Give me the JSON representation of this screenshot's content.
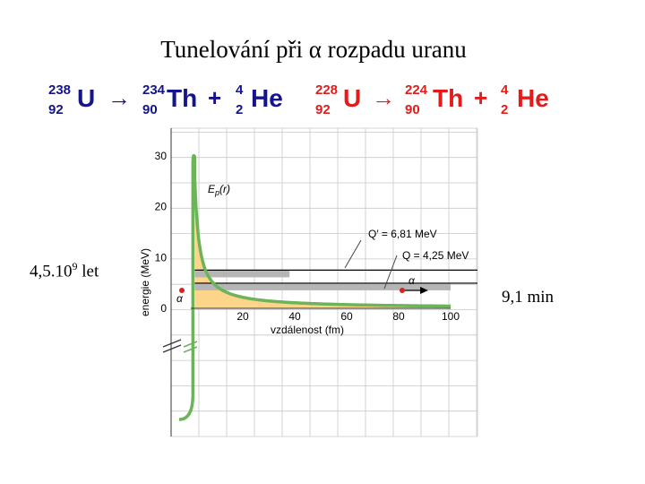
{
  "title": "Tunelování při α rozpadu uranu",
  "equation_1": {
    "color": "#14148c",
    "parent": {
      "mass": "238",
      "charge": "92",
      "symbol": "U"
    },
    "arrow": "→",
    "daughter": {
      "mass": "234",
      "charge": "90",
      "symbol": "Th"
    },
    "plus": "+",
    "alpha": {
      "mass": "4",
      "charge": "2",
      "symbol": "He"
    }
  },
  "equation_2": {
    "color": "#e21b1b",
    "parent": {
      "mass": "228",
      "charge": "92",
      "symbol": "U"
    },
    "arrow": "→",
    "daughter": {
      "mass": "224",
      "charge": "90",
      "symbol": "Th"
    },
    "plus": "+",
    "alpha": {
      "mass": "4",
      "charge": "2",
      "symbol": "He"
    }
  },
  "half_life_u238": {
    "mantissa": "4,5.10",
    "exponent": "9",
    "unit": " let"
  },
  "half_life_u228": "9,1 min",
  "graph": {
    "curve_label": "E",
    "curve_label_sub": "p",
    "curve_label_arg": "(r)",
    "level_high_label": "Q′ = 6,81 MeV",
    "level_low_label": "Q = 4,25 MeV",
    "particle_label": "α",
    "particle_label_left": "α",
    "y_axis_label": "energie (MeV)",
    "x_axis_label": "vzdálenost (fm)",
    "y_ticks": [
      "0",
      "10",
      "20",
      "30"
    ],
    "x_ticks": [
      "20",
      "40",
      "60",
      "80",
      "100"
    ],
    "x_range": [
      0,
      100
    ],
    "y_range": [
      0,
      30
    ],
    "level_high_value": 6.81,
    "level_low_value": 4.25,
    "fill_color": "#fcd58a",
    "curve_color": "#6cb35a",
    "band_color": "#b5b5b5",
    "grid": true
  }
}
